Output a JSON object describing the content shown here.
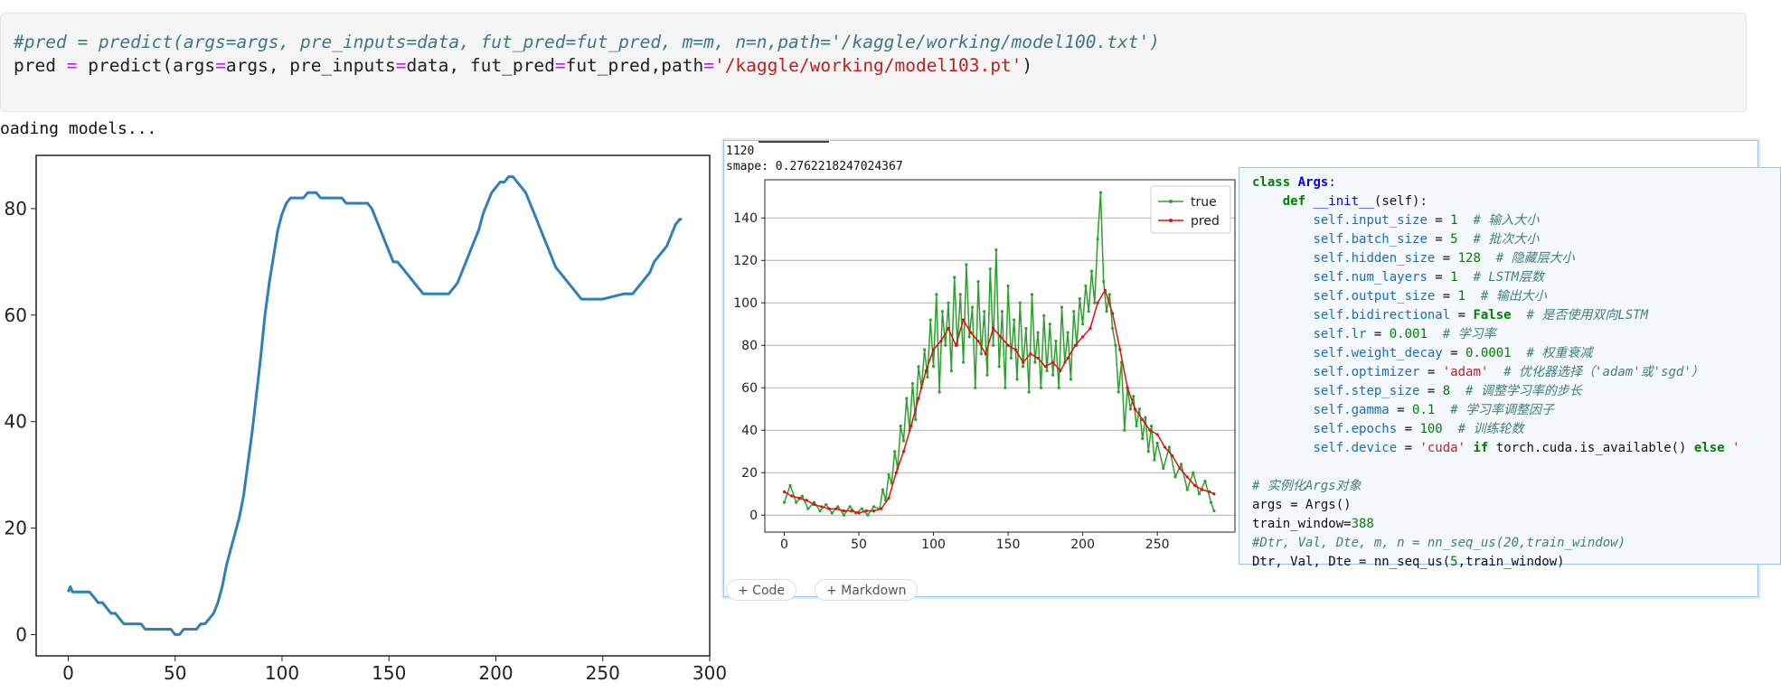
{
  "cell": {
    "line1": "#pred = predict(args=args, pre_inputs=data, fut_pred=fut_pred, m=m, n=n,path='/kaggle/working/model100.txt')",
    "line2": {
      "var": "pred",
      "eq": "=",
      "call": "predict(args",
      "eq2": "=",
      "a1": "args, pre_inputs",
      "eq3": "=",
      "a2": "data, fut_pred",
      "eq4": "=",
      "a3": "fut_pred,path",
      "eq5": "=",
      "path": "'/kaggle/working/model103.pt'",
      "close": ")"
    }
  },
  "output": {
    "status": "oading models..."
  },
  "chart_data": [
    {
      "type": "line",
      "xlim": [
        -15,
        300
      ],
      "ylim": [
        -4,
        90
      ],
      "xticks": [
        "0",
        "50",
        "100",
        "150",
        "200",
        "250",
        "300"
      ],
      "yticks": [
        "0",
        "20",
        "40",
        "60",
        "80"
      ],
      "series": [
        {
          "x": [
            0,
            1,
            2,
            10,
            12,
            14,
            16,
            18,
            20,
            22,
            24,
            26,
            28,
            32,
            34,
            36,
            40,
            42,
            48,
            50,
            52,
            54,
            60,
            62,
            64,
            66,
            68,
            70,
            72,
            74,
            76,
            78,
            80,
            82,
            84,
            86,
            88,
            90,
            92,
            94,
            96,
            98,
            100,
            102,
            104,
            106,
            108,
            110,
            112,
            116,
            118,
            120,
            128,
            130,
            138,
            140,
            142,
            144,
            146,
            148,
            150,
            152,
            154,
            156,
            158,
            160,
            162,
            164,
            166,
            168,
            172,
            176,
            178,
            180,
            182,
            184,
            186,
            188,
            190,
            192,
            194,
            196,
            198,
            200,
            202,
            204,
            206,
            208,
            210,
            212,
            214,
            216,
            218,
            220,
            222,
            224,
            226,
            228,
            230,
            232,
            234,
            236,
            238,
            240,
            242,
            244,
            246,
            248,
            250,
            260,
            262,
            264,
            266,
            268,
            270,
            272,
            274,
            276,
            278,
            280,
            282,
            284,
            286,
            287
          ],
          "values": [
            8,
            9,
            8,
            8,
            7,
            6,
            6,
            5,
            4,
            4,
            3,
            2,
            2,
            2,
            2,
            1,
            1,
            1,
            1,
            0,
            0,
            1,
            1,
            2,
            2,
            3,
            4,
            6,
            9,
            13,
            16,
            19,
            22,
            26,
            32,
            38,
            45,
            52,
            60,
            66,
            71,
            76,
            79,
            81,
            82,
            82,
            82,
            82,
            83,
            83,
            82,
            82,
            82,
            81,
            81,
            81,
            80,
            78,
            76,
            74,
            72,
            70,
            70,
            69,
            68,
            67,
            66,
            65,
            64,
            64,
            64,
            64,
            64,
            65,
            66,
            68,
            70,
            72,
            74,
            76,
            79,
            81,
            83,
            84,
            85,
            85,
            86,
            86,
            85,
            84,
            83,
            81,
            79,
            77,
            75,
            73,
            71,
            69,
            68,
            67,
            66,
            65,
            64,
            63,
            63,
            63,
            63,
            63,
            63,
            64,
            64,
            64,
            65,
            66,
            67,
            68,
            70,
            71,
            72,
            73,
            75,
            77,
            78,
            78
          ]
        }
      ]
    },
    {
      "type": "line",
      "xlim": [
        -13,
        302
      ],
      "ylim": [
        -8,
        158
      ],
      "xticks": [
        "0",
        "50",
        "100",
        "150",
        "200",
        "250"
      ],
      "yticks": [
        "0",
        "20",
        "40",
        "60",
        "80",
        "100",
        "120",
        "140"
      ],
      "grid": true,
      "legend_position": "top-right",
      "series": [
        {
          "name": "true",
          "color": "#2ca02c",
          "x": [
            0,
            4,
            8,
            12,
            16,
            20,
            24,
            28,
            32,
            36,
            40,
            44,
            48,
            52,
            56,
            60,
            64,
            66,
            68,
            70,
            72,
            74,
            76,
            78,
            80,
            82,
            84,
            86,
            88,
            90,
            92,
            94,
            96,
            98,
            100,
            102,
            104,
            106,
            108,
            110,
            112,
            114,
            116,
            118,
            120,
            122,
            124,
            126,
            128,
            130,
            132,
            134,
            136,
            138,
            140,
            142,
            144,
            146,
            148,
            150,
            152,
            154,
            156,
            158,
            160,
            162,
            164,
            166,
            168,
            170,
            172,
            174,
            176,
            178,
            180,
            182,
            184,
            186,
            188,
            190,
            192,
            194,
            196,
            198,
            200,
            202,
            204,
            206,
            208,
            210,
            212,
            214,
            216,
            218,
            220,
            222,
            224,
            226,
            228,
            230,
            232,
            234,
            236,
            238,
            240,
            242,
            244,
            246,
            248,
            250,
            254,
            258,
            262,
            266,
            270,
            274,
            278,
            282,
            286,
            288
          ],
          "values": [
            6,
            14,
            6,
            9,
            3,
            6,
            2,
            5,
            1,
            4,
            0,
            4,
            1,
            3,
            0,
            4,
            3,
            12,
            7,
            19,
            15,
            30,
            22,
            42,
            35,
            55,
            40,
            62,
            45,
            70,
            60,
            78,
            65,
            92,
            70,
            104,
            58,
            96,
            80,
            100,
            68,
            112,
            80,
            104,
            72,
            118,
            84,
            98,
            60,
            110,
            76,
            96,
            66,
            116,
            80,
            125,
            70,
            96,
            60,
            108,
            74,
            92,
            64,
            100,
            70,
            88,
            58,
            104,
            72,
            86,
            60,
            94,
            68,
            90,
            66,
            82,
            60,
            98,
            72,
            86,
            64,
            96,
            80,
            102,
            90,
            108,
            96,
            115,
            100,
            130,
            152,
            110,
            96,
            104,
            88,
            80,
            58,
            72,
            40,
            60,
            50,
            56,
            42,
            50,
            36,
            46,
            30,
            42,
            26,
            34,
            22,
            32,
            18,
            24,
            12,
            20,
            10,
            16,
            6,
            2
          ]
        },
        {
          "name": "pred",
          "color": "#e01010",
          "x": [
            0,
            5,
            10,
            15,
            20,
            25,
            30,
            35,
            40,
            45,
            50,
            55,
            60,
            65,
            70,
            75,
            80,
            85,
            90,
            95,
            100,
            105,
            110,
            115,
            120,
            125,
            130,
            135,
            140,
            145,
            150,
            155,
            160,
            165,
            170,
            175,
            180,
            185,
            190,
            195,
            200,
            205,
            210,
            215,
            220,
            225,
            230,
            235,
            240,
            245,
            250,
            255,
            260,
            265,
            270,
            275,
            280,
            285,
            288
          ],
          "values": [
            11,
            9,
            8,
            7,
            5,
            4,
            3,
            3,
            2,
            2,
            1,
            2,
            2,
            3,
            8,
            20,
            30,
            42,
            55,
            68,
            78,
            82,
            88,
            80,
            92,
            86,
            82,
            76,
            88,
            84,
            80,
            78,
            72,
            76,
            74,
            70,
            72,
            68,
            74,
            80,
            84,
            88,
            100,
            106,
            95,
            78,
            60,
            50,
            45,
            40,
            38,
            32,
            28,
            22,
            18,
            14,
            12,
            11,
            10
          ]
        }
      ]
    }
  ],
  "screenshot": {
    "line1": "1120",
    "line2": "smape: 0.2762218247024367",
    "add_code": "+ Code",
    "add_markdown": "+ Markdown"
  },
  "args_code": {
    "l1": [
      "class",
      "Args",
      ":"
    ],
    "l2": [
      "def",
      "__init__",
      "(self):"
    ],
    "params": [
      {
        "name": "self.input_size",
        "value": "1",
        "comment": "# 输入大小"
      },
      {
        "name": "self.batch_size",
        "value": "5",
        "comment": "# 批次大小"
      },
      {
        "name": "self.hidden_size",
        "value": "128",
        "comment": "# 隐藏层大小"
      },
      {
        "name": "self.num_layers",
        "value": "1",
        "comment": "# LSTM层数"
      },
      {
        "name": "self.output_size",
        "value": "1",
        "comment": "# 输出大小"
      },
      {
        "name": "self.bidirectional",
        "value": "False",
        "comment": "# 是否使用双向LSTM"
      },
      {
        "name": "self.lr",
        "value": "0.001",
        "comment": "# 学习率"
      },
      {
        "name": "self.weight_decay",
        "value": "0.0001",
        "comment": "# 权重衰减"
      },
      {
        "name": "self.optimizer",
        "value": "'adam'",
        "comment": "# 优化器选择（'adam'或'sgd'）"
      },
      {
        "name": "self.step_size",
        "value": "8",
        "comment": "# 调整学习率的步长"
      },
      {
        "name": "self.gamma",
        "value": "0.1",
        "comment": "# 学习率调整因子"
      },
      {
        "name": "self.epochs",
        "value": "100",
        "comment": "# 训练轮数"
      }
    ],
    "device": {
      "name": "self.device",
      "value": "'cuda'",
      "if_kw": "if",
      "cond": "torch.cuda.is_available()",
      "else_kw": "else",
      "rest": "'"
    },
    "comment_instance": "# 实例化Args对象",
    "args_line": "args = Args()",
    "train_window": {
      "name": "train_window=",
      "value": "388"
    },
    "comment_dtr": "#Dtr, Val, Dte, m, n = nn_seq_us(20,train_window)",
    "dtr_line": {
      "a": "Dtr, Val, Dte = nn_seq_us(",
      "num": "5",
      "b": ",train_window)"
    }
  }
}
